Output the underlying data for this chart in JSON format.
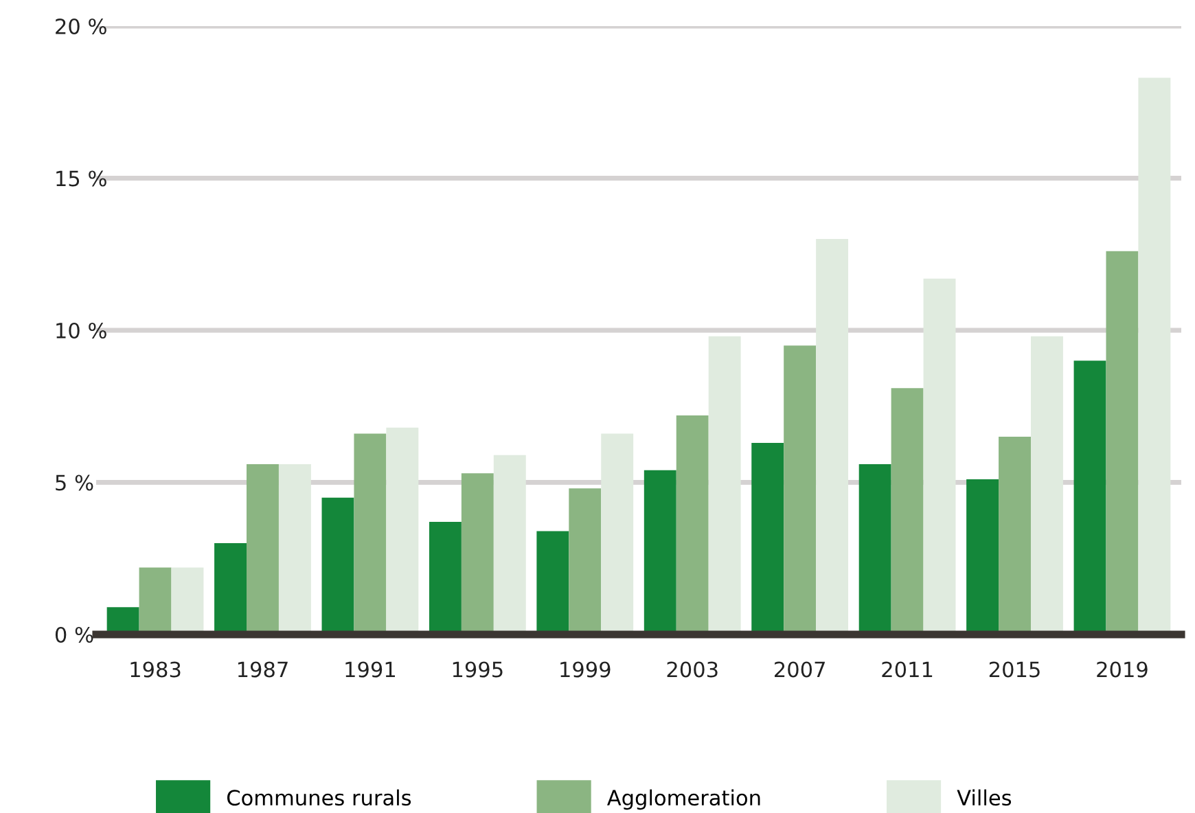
{
  "chart_data": {
    "type": "bar",
    "categories": [
      "1983",
      "1987",
      "1991",
      "1995",
      "1999",
      "2003",
      "2007",
      "2011",
      "2015",
      "2019"
    ],
    "series": [
      {
        "name": "Communes rurals",
        "color": "#14873a",
        "values": [
          0.9,
          3.0,
          4.5,
          3.7,
          3.4,
          5.4,
          6.3,
          5.6,
          5.1,
          9.0
        ]
      },
      {
        "name": "Agglomeration",
        "color": "#8bb582",
        "values": [
          2.2,
          5.6,
          6.6,
          5.3,
          4.8,
          7.2,
          9.5,
          8.1,
          6.5,
          12.6
        ]
      },
      {
        "name": "Villes",
        "color": "#e0ebdf",
        "values": [
          2.2,
          5.6,
          6.8,
          5.9,
          6.6,
          9.8,
          13.0,
          11.7,
          9.8,
          18.3
        ]
      }
    ],
    "ylim": [
      0,
      20
    ],
    "yticks": [
      {
        "value": 0,
        "label": "0 %"
      },
      {
        "value": 5,
        "label": "5 %"
      },
      {
        "value": 10,
        "label": "10 %"
      },
      {
        "value": 15,
        "label": "15 %"
      },
      {
        "value": 20,
        "label": "20 %"
      }
    ],
    "grid": "y",
    "legend": "bottom"
  }
}
